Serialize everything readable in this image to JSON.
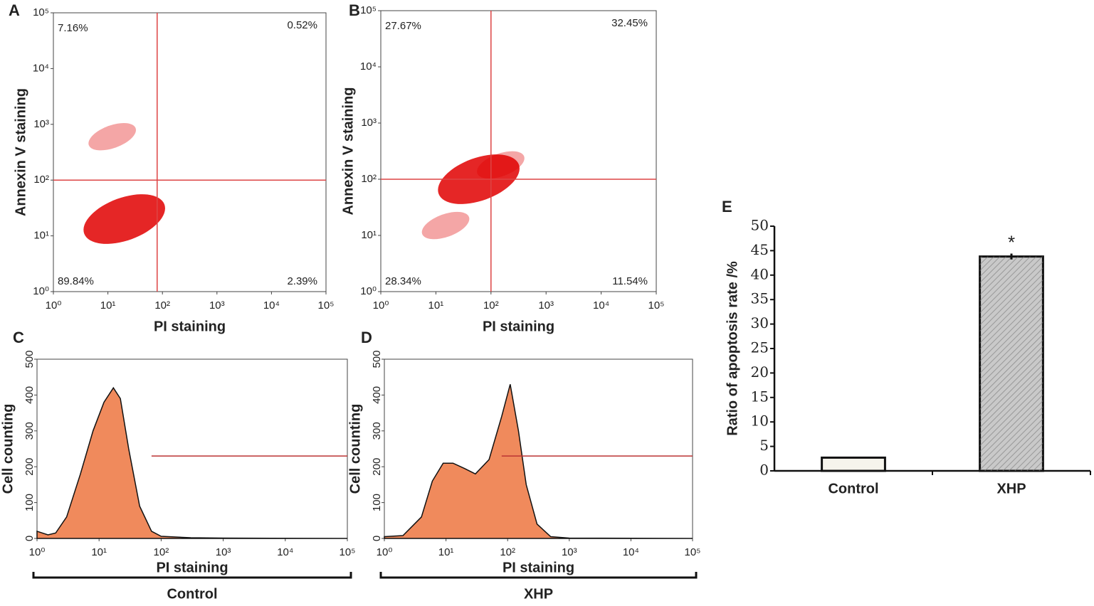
{
  "chart_data": [
    {
      "type": "quadrant",
      "panel": "A",
      "xlabel": "PI staining",
      "ylabel": "Annexin V staining",
      "log_x": true,
      "log_y": true,
      "xlim": [
        1,
        100000
      ],
      "ylim": [
        1,
        100000
      ],
      "xticks": [
        {
          "value": 1,
          "label": "10⁰"
        },
        {
          "value": 10,
          "label": "10¹"
        },
        {
          "value": 100,
          "label": "10²"
        },
        {
          "value": 1000,
          "label": "10³"
        },
        {
          "value": 10000,
          "label": "10⁴"
        },
        {
          "value": 100000,
          "label": "10⁵"
        }
      ],
      "yticks": [
        {
          "value": 1,
          "label": "10⁰"
        },
        {
          "value": 10,
          "label": "10¹"
        },
        {
          "value": 100,
          "label": "10²"
        },
        {
          "value": 1000,
          "label": "10³"
        },
        {
          "value": 10000,
          "label": "10⁴"
        },
        {
          "value": 100000,
          "label": "10⁵"
        }
      ],
      "gate": {
        "x": 80,
        "y": 100
      },
      "values": [
        7.16,
        0.52,
        89.84,
        2.39
      ],
      "value_labels": [
        "7.16%",
        "0.52%",
        "89.84%",
        "2.39%"
      ],
      "clusters": [
        {
          "x": 20,
          "y": 20
        },
        {
          "x": 12,
          "y": 600
        }
      ],
      "color": "#e00000"
    },
    {
      "type": "quadrant",
      "panel": "B",
      "xlabel": "PI staining",
      "ylabel": "Annexin V staining",
      "log_x": true,
      "log_y": true,
      "xlim": [
        1,
        100000
      ],
      "ylim": [
        1,
        100000
      ],
      "xticks": [
        {
          "value": 1,
          "label": "10⁰"
        },
        {
          "value": 10,
          "label": "10¹"
        },
        {
          "value": 100,
          "label": "10²"
        },
        {
          "value": 1000,
          "label": "10³"
        },
        {
          "value": 10000,
          "label": "10⁴"
        },
        {
          "value": 100000,
          "label": "10⁵"
        }
      ],
      "yticks": [
        {
          "value": 1,
          "label": "10⁰"
        },
        {
          "value": 10,
          "label": "10¹"
        },
        {
          "value": 100,
          "label": "10²"
        },
        {
          "value": 1000,
          "label": "10³"
        },
        {
          "value": 10000,
          "label": "10⁴"
        },
        {
          "value": 100000,
          "label": "10⁵"
        }
      ],
      "gate": {
        "x": 100,
        "y": 100
      },
      "values": [
        27.67,
        32.45,
        28.34,
        11.54
      ],
      "value_labels": [
        "27.67%",
        "32.45%",
        "28.34%",
        "11.54%"
      ],
      "clusters": [
        {
          "x": 60,
          "y": 100
        },
        {
          "x": 150,
          "y": 180
        },
        {
          "x": 15,
          "y": 15
        }
      ],
      "color": "#e00000"
    },
    {
      "type": "area",
      "panel": "C",
      "xlabel": "PI staining",
      "ylabel": "Cell counting",
      "group": "Control",
      "log_x": true,
      "xlim": [
        1,
        100000
      ],
      "ylim": [
        0,
        500
      ],
      "xticks": [
        {
          "value": 1,
          "label": "10⁰"
        },
        {
          "value": 10,
          "label": "10¹"
        },
        {
          "value": 100,
          "label": "10²"
        },
        {
          "value": 1000,
          "label": "10³"
        },
        {
          "value": 10000,
          "label": "10⁴"
        },
        {
          "value": 100000,
          "label": "10⁵"
        }
      ],
      "yticks": [
        0,
        100,
        200,
        300,
        400,
        500
      ],
      "x": [
        1,
        1.5,
        2,
        3,
        5,
        8,
        12,
        17,
        22,
        30,
        45,
        70,
        100,
        300,
        1000,
        100000
      ],
      "values": [
        20,
        10,
        15,
        60,
        180,
        300,
        380,
        420,
        390,
        250,
        90,
        20,
        6,
        2,
        1,
        0
      ],
      "gate": {
        "from": 70,
        "to": 100000,
        "y": 230
      },
      "color": "#f08a5c"
    },
    {
      "type": "area",
      "panel": "D",
      "xlabel": "PI staining",
      "ylabel": "Cell counting",
      "group": "XHP",
      "log_x": true,
      "xlim": [
        1,
        100000
      ],
      "ylim": [
        0,
        500
      ],
      "xticks": [
        {
          "value": 1,
          "label": "10⁰"
        },
        {
          "value": 10,
          "label": "10¹"
        },
        {
          "value": 100,
          "label": "10²"
        },
        {
          "value": 1000,
          "label": "10³"
        },
        {
          "value": 10000,
          "label": "10⁴"
        },
        {
          "value": 100000,
          "label": "10⁵"
        }
      ],
      "yticks": [
        0,
        100,
        200,
        300,
        400,
        500
      ],
      "x": [
        1,
        2,
        4,
        6,
        9,
        13,
        20,
        30,
        50,
        80,
        110,
        150,
        200,
        300,
        500,
        1000,
        100000
      ],
      "values": [
        5,
        8,
        60,
        160,
        210,
        210,
        195,
        180,
        220,
        340,
        430,
        300,
        150,
        40,
        5,
        1,
        0
      ],
      "gate": {
        "from": 80,
        "to": 100000,
        "y": 230
      },
      "color": "#f08a5c"
    },
    {
      "type": "bar",
      "panel": "E",
      "ylabel": "Ratio of apoptosis rate /%",
      "categories": [
        "Control",
        "XHP"
      ],
      "values": [
        2.7,
        43.8
      ],
      "errors": [
        0.1,
        0.6
      ],
      "colors": [
        "#f6f4ec",
        "#c9c9c9"
      ],
      "annotation": "*",
      "ylim": [
        0,
        50
      ],
      "yticks": [
        0,
        5,
        10,
        15,
        20,
        25,
        30,
        35,
        40,
        45,
        50
      ]
    }
  ]
}
